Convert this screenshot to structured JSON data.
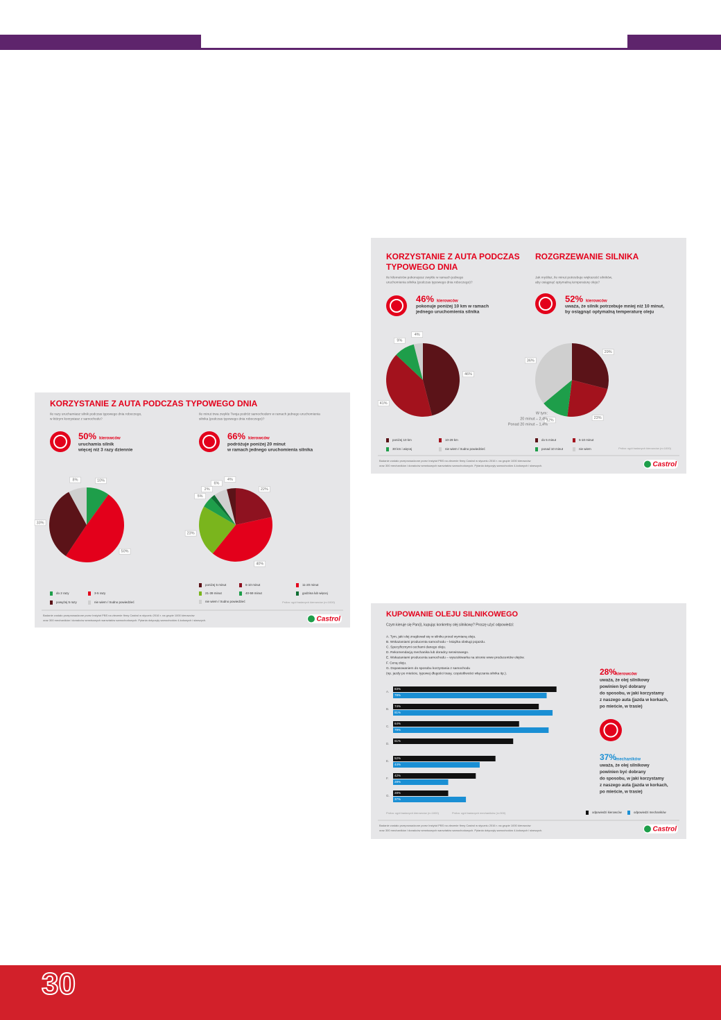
{
  "page_number": "30",
  "info1": {
    "title": "KORZYSTANIE Z AUTA PODCZAS TYPOWEGO DNIA",
    "left": {
      "question": [
        "Ile razy uruchamiasz silnik podczas typowego dnia roboczego,",
        "w którym korzystasz z samochodu?"
      ],
      "stat": "50%",
      "stat_unit": "kierowców",
      "stat_text": [
        "uruchamia silnik",
        "więcej niż 3 razy dziennie"
      ],
      "pie": {
        "values": [
          10,
          50,
          33,
          8
        ],
        "value_labels": [
          "10%",
          "50%",
          "33%",
          "8%"
        ],
        "colors": [
          "#1e9e4a",
          "#e3001b",
          "#5b1318",
          "#cfcfcf"
        ]
      },
      "legend": [
        {
          "label": "do 2 razy",
          "color": "#1e9e4a"
        },
        {
          "label": "3-5 razy",
          "color": "#e3001b"
        },
        {
          "label": "powyżej 5 razy",
          "color": "#5b1318"
        },
        {
          "label": "nie wiem / trudno powiedzieć",
          "color": "#cfcfcf"
        }
      ]
    },
    "right": {
      "question": [
        "Ile minut trwa zwykle Twoja podróż samochodem w ramach jednego uruchomienia",
        "silnika (podczas typowego dnia roboczego)?"
      ],
      "stat": "66%",
      "stat_unit": "kierowców",
      "stat_text": [
        "podróżuje poniżej 20 minut",
        "w ramach jednego uruchomienia silnika"
      ],
      "pie": {
        "values": [
          22,
          40,
          23,
          5,
          2,
          6,
          4
        ],
        "value_labels": [
          "22%",
          "40%",
          "23%",
          "5%",
          "2%",
          "6%",
          "4%"
        ],
        "colors": [
          "#8e1220",
          "#e3001b",
          "#7ab51d",
          "#1e9e4a",
          "#0e6e33",
          "#cfcfcf",
          "#5b1318"
        ]
      },
      "legend": [
        {
          "label": "poniżej 5 minut",
          "color": "#5b1318"
        },
        {
          "label": "6-10 minut",
          "color": "#8e1220"
        },
        {
          "label": "11-20 minut",
          "color": "#e3001b"
        },
        {
          "label": "21-39 minut",
          "color": "#7ab51d"
        },
        {
          "label": "40-59 minut",
          "color": "#1e9e4a"
        },
        {
          "label": "godzina lub więcej",
          "color": "#0e6e33"
        },
        {
          "label": "nie wiem / trudno powiedzieć",
          "color": "#cfcfcf"
        }
      ]
    },
    "source": "Próba: ogół badanych kierowców (n=1000)",
    "footnote": [
      "Badanie zostało przeprowadzone przez Instytut PBS na zlecenie firmy Castrol w styczniu 2016 r. na grupie 1000 kierowców",
      "oraz 300 mechaników i doradców serwisowych warsztatów samochodowych. Pytania dotyczyły samochodów 4-kołowych i starszych."
    ],
    "brand": "Castrol"
  },
  "info2": {
    "left": {
      "title": [
        "KORZYSTANIE Z AUTA PODCZAS",
        "TYPOWEGO DNIA"
      ],
      "question": [
        "Ile kilometrów pokonujesz zwykle w ramach jednego",
        "uruchomienia silnika (podczas typowego dnia roboczego)?"
      ],
      "stat": "46%",
      "stat_unit": "kierowców",
      "stat_text": [
        "pokonuje poniżej 10 km w ramach",
        "jednego uruchomienia silnika"
      ],
      "pie": {
        "values": [
          46,
          41,
          9,
          4
        ],
        "value_labels": [
          "46%",
          "41%",
          "9%",
          "4%"
        ],
        "colors": [
          "#5b1318",
          "#a3121d",
          "#1e9e4a",
          "#cfcfcf"
        ]
      },
      "legend": [
        {
          "label": "poniżej 10 km",
          "color": "#5b1318"
        },
        {
          "label": "10-29 km",
          "color": "#a3121d"
        },
        {
          "label": "30 km i więcej",
          "color": "#1e9e4a"
        },
        {
          "label": "nie wiem / trudno powiedzieć",
          "color": "#cfcfcf"
        }
      ]
    },
    "right": {
      "title": [
        "ROZGRZEWANIE SILNIKA"
      ],
      "question": [
        "Jak myślisz, ile minut potrzebuje większość silników,",
        "aby osiągnąć optymalną temperaturę oleju?"
      ],
      "stat": "52%",
      "stat_unit": "kierowców",
      "stat_text": [
        "uważa, że silnik potrzebuje mniej niż 10 minut,",
        "by osiągnąć optymalną temperaturę oleju"
      ],
      "pie": {
        "values": [
          29,
          23,
          12,
          36
        ],
        "value_labels": [
          "29%",
          "23%",
          "12%",
          "36%"
        ],
        "colors": [
          "#5b1318",
          "#a3121d",
          "#1e9e4a",
          "#cfcfcf"
        ]
      },
      "note": [
        "W tym:",
        "20 minut – 2,4%",
        "Ponad 20 minut – 1,4%"
      ],
      "legend": [
        {
          "label": "do 5 minut",
          "color": "#5b1318"
        },
        {
          "label": "5-10 minut",
          "color": "#a3121d"
        },
        {
          "label": "ponad 10 minut",
          "color": "#1e9e4a"
        },
        {
          "label": "nie wiem",
          "color": "#cfcfcf"
        }
      ]
    },
    "source": "Próba: ogół badanych kierowców (n=1000)",
    "footnote": [
      "Badanie zostało przeprowadzone przez Instytut PBS na zlecenie firmy Castrol w styczniu 2016 r. na grupie 1000 kierowców",
      "oraz 300 mechaników i doradców serwisowych warsztatów samochodowych. Pytania dotyczyły samochodów 4-kołowych i starszych."
    ],
    "brand": "Castrol"
  },
  "info3": {
    "title": "KUPOWANIE OLEJU SILNIKOWEGO",
    "question": "Czym kieruje się Pan(i), kupując konkretny olej silnikowy? Proszę użyć odpowiedzi:",
    "options": [
      "A. Tym, jaki olej znajdował się w silniku przed wymianą oleju.",
      "B. Wskazaniami producenta samochodu – książka obsługi pojazdu.",
      "C. Specyficznymi cechami danego oleju.",
      "D. Rekomendacją mechanika lub doradcy serwisowego.",
      "E. Wskazaniami producenta samochodu – wyszukiwarka na stronie www producentów olejów.",
      "F. Ceną oleju.",
      "G. Dopasowaniem do sposobu korzystania z samochodu",
      "(np. jazdy po mieście, typowej długości trasy, częstotliwości włączania silnika itp.)."
    ],
    "bars": {
      "categories": [
        "A.",
        "B.",
        "C.",
        "D.",
        "E.",
        "F.",
        "G."
      ],
      "series": [
        {
          "name": "odpowiedzi kierowców",
          "color": "#111111",
          "values": [
            83,
            74,
            64,
            61,
            52,
            42,
            28
          ],
          "value_labels": [
            "83%",
            "74%",
            "64%",
            "61%",
            "52%",
            "42%",
            "28%"
          ]
        },
        {
          "name": "odpowiedzi mechaników",
          "color": "#1a8fd4",
          "values": [
            78,
            81,
            79,
            null,
            44,
            28,
            37
          ],
          "value_labels": [
            "78%",
            "81%",
            "79%",
            null,
            "44%",
            "28%",
            "37%"
          ]
        }
      ]
    },
    "side_drivers": {
      "stat": "28%",
      "stat_unit": "kierowców",
      "text": [
        "uważa, że olej silnikowy",
        "powinien być dobrany",
        "do sposobu, w jaki korzystamy",
        "z naszego auta (jazda w korkach,",
        "po mieście, w trasie)"
      ]
    },
    "side_mechanics": {
      "stat": "37%",
      "stat_unit": "mechaników",
      "text": [
        "uważa, że olej silnikowy",
        "powinien być dobrany",
        "do sposobu, w jaki korzystamy",
        "z naszego auta (jazda w korkach,",
        "po mieście, w trasie)"
      ]
    },
    "sources": [
      "Próba: ogół badanych kierowców (n=1000)",
      "Próba: ogół badanych mechaników (n=300)"
    ],
    "footnote": [
      "Badanie zostało przeprowadzone przez Instytut PBS na zlecenie firmy Castrol w styczniu 2016 r. na grupie 1000 kierowców",
      "oraz 300 mechaników i doradców serwisowych warsztatów samochodowych. Pytania dotyczyły samochodów 4-kołowych i starszych."
    ],
    "brand": "Castrol"
  }
}
